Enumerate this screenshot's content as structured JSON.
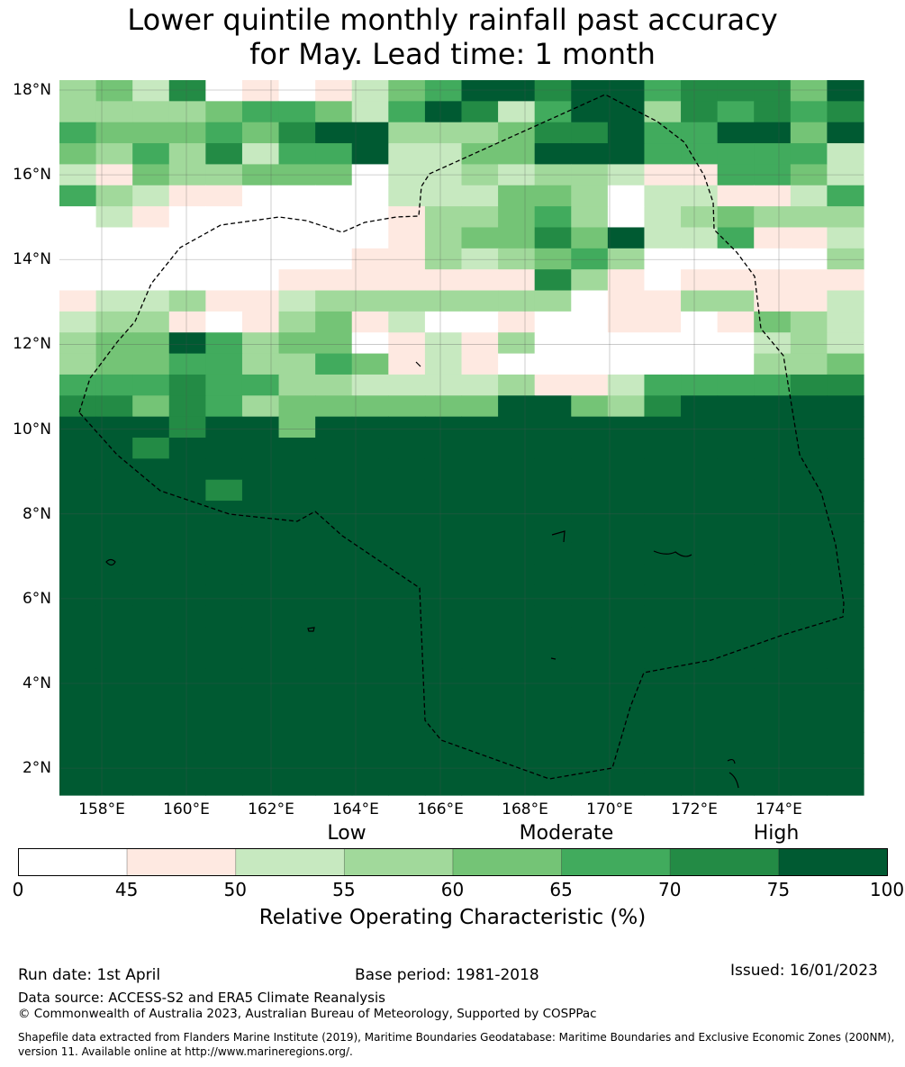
{
  "title": {
    "line1": "Lower quintile monthly rainfall past accuracy",
    "line2": "for May. Lead time: 1 month"
  },
  "map": {
    "lat_labels": [
      "18°N",
      "16°N",
      "14°N",
      "12°N",
      "10°N",
      "8°N",
      "6°N",
      "4°N",
      "2°N"
    ],
    "lon_labels": [
      "158°E",
      "160°E",
      "162°E",
      "164°E",
      "166°E",
      "168°E",
      "170°E",
      "172°E",
      "174°E"
    ],
    "lon_range": [
      157,
      176
    ],
    "lat_range": [
      1.4,
      18.3
    ],
    "grid_lines": true,
    "boundary_style": "dashed"
  },
  "legend": {
    "categories": [
      {
        "label": "Low"
      },
      {
        "label": "Moderate"
      },
      {
        "label": "High"
      }
    ],
    "bins": [
      {
        "from": 0,
        "to": 45,
        "color": "#ffffff"
      },
      {
        "from": 45,
        "to": 50,
        "color": "#fee9e1"
      },
      {
        "from": 50,
        "to": 55,
        "color": "#c7e9c0"
      },
      {
        "from": 55,
        "to": 60,
        "color": "#a1d99b"
      },
      {
        "from": 60,
        "to": 65,
        "color": "#74c476"
      },
      {
        "from": 65,
        "to": 70,
        "color": "#41ab5d"
      },
      {
        "from": 70,
        "to": 75,
        "color": "#238b45"
      },
      {
        "from": 75,
        "to": 100,
        "color": "#005a32"
      }
    ],
    "ticks": [
      "0",
      "45",
      "50",
      "55",
      "60",
      "65",
      "70",
      "75",
      "100"
    ],
    "title": "Relative Operating Characteristic (%)"
  },
  "footer": {
    "run_date": "Run date: 1st April",
    "base_period": "Base period: 1981-2018",
    "issued": "Issued: 16/01/2023",
    "data_source": "Data source: ACCESS-S2 and ERA5 Climate Reanalysis",
    "copyright": "© Commonwealth of Australia 2023, Australian Bureau of Meteorology, Supported by COSPPac",
    "shapefile_line1": "Shapefile data extracted from Flanders Marine Institute (2019), Maritime Boundaries Geodatabase: Maritime Boundaries and Exclusive Economic Zones (200NM),",
    "shapefile_line2": "version 11. Available online at http://www.marineregions.org/."
  },
  "grid_rows": [
    "3426010124577677566647",
    "3333455425762577365656",
    "5444546773334667557747",
    "4353625572244777555552",
    "2143344402232332115542",
    "5321100002224430221125",
    "0210000001334530234333",
    "0000000001344647225112",
    "0000000011323453000003",
    "0000001111111631011111",
    "1223112333333301133112",
    "2331013412001001101432",
    "3447534401213000000232",
    "3445533541210000000334",
    "5556553322223112555566",
    "6646534444447743677777",
    "7776774777777777777777",
    "7767777777777777777777",
    "7777777777777777777777",
    "7777677777777777777777",
    "7777777777777777777777",
    "7777777777777777777777",
    "7777777777777777777777",
    "7777777777777777777777",
    "7777777777777777777777",
    "7777777777777777777777",
    "7777777777777777777777",
    "7777777777777777777777",
    "7777777777777777777777",
    "7777777777777777777777",
    "7777777777777777777777",
    "7777777777777777777777",
    "7777777777777777777777",
    "7777777777777777777777"
  ]
}
